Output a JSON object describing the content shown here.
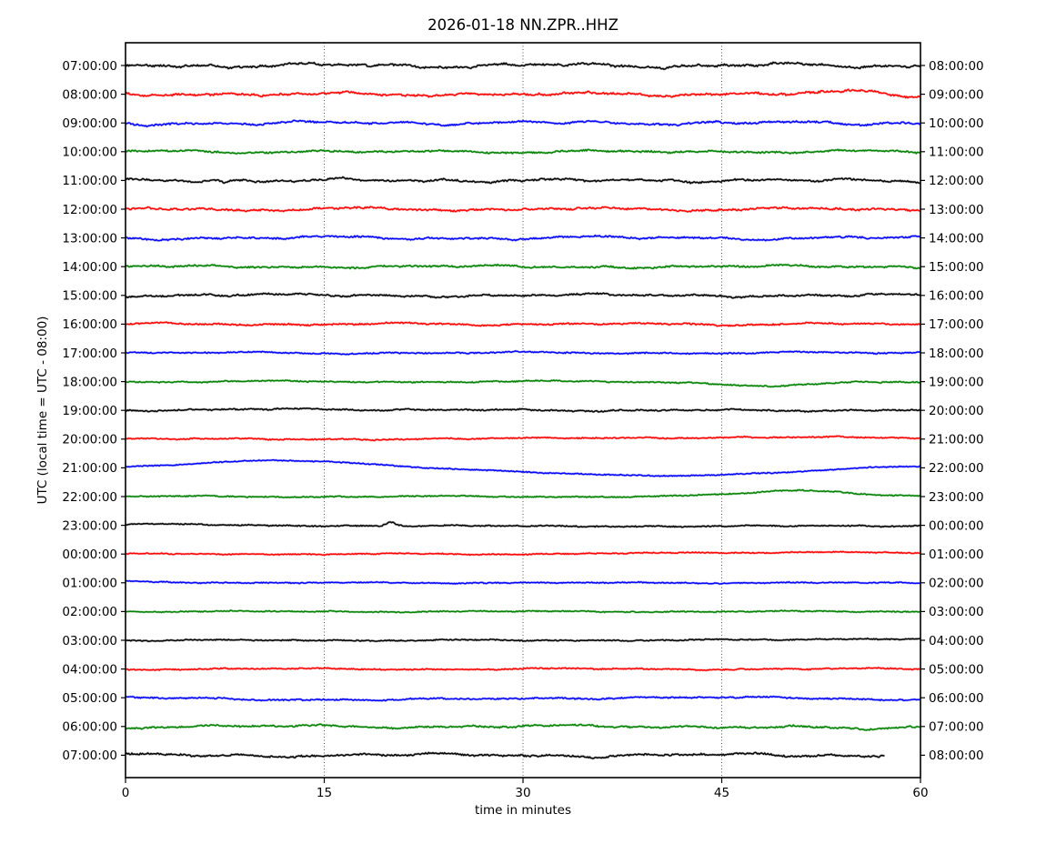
{
  "figure": {
    "title": "2026-01-18 NN.ZPR..HHZ",
    "xlabel": "time in minutes",
    "ylabel": "UTC (local time = UTC - 08:00)",
    "background": "#ffffff"
  },
  "chart_data": {
    "type": "line",
    "subtype": "seismic-helicorder-dayplot",
    "title": "2026-01-18 NN.ZPR..HHZ",
    "xlabel": "time in minutes",
    "ylabel": "UTC (local time = UTC - 08:00)",
    "x_range": [
      0,
      60
    ],
    "x_ticks": [
      0,
      15,
      30,
      45,
      60
    ],
    "grid_x_minutes": [
      15,
      30,
      45
    ],
    "grid_on": true,
    "minutes_per_row": 60,
    "colors_cycle": [
      "#000000",
      "#ff0000",
      "#0000ff",
      "#008000"
    ],
    "axis_color": "#000000",
    "rows": [
      {
        "left_label": "07:00:00",
        "right_label": "08:00:00",
        "color": "#000000",
        "noise_amp": 3.0,
        "seed": 1021,
        "end_min": 60,
        "features": []
      },
      {
        "left_label": "08:00:00",
        "right_label": "09:00:00",
        "color": "#ff0000",
        "noise_amp": 2.8,
        "seed": 2017,
        "end_min": 60,
        "features": [
          {
            "c": 55,
            "w": 3.5,
            "a": 3
          },
          {
            "c": 59.5,
            "w": 2,
            "a": -2
          }
        ]
      },
      {
        "left_label": "09:00:00",
        "right_label": "10:00:00",
        "color": "#0000ff",
        "noise_amp": 2.6,
        "seed": 3011,
        "end_min": 60,
        "features": [
          {
            "c": 1.5,
            "w": 2,
            "a": -2
          }
        ]
      },
      {
        "left_label": "10:00:00",
        "right_label": "11:00:00",
        "color": "#008000",
        "noise_amp": 2.3,
        "seed": 4007,
        "end_min": 60,
        "features": []
      },
      {
        "left_label": "11:00:00",
        "right_label": "12:00:00",
        "color": "#000000",
        "noise_amp": 2.6,
        "seed": 5003,
        "end_min": 60,
        "features": [
          {
            "c": 7.5,
            "w": 0.35,
            "a": -2.5
          }
        ]
      },
      {
        "left_label": "12:00:00",
        "right_label": "13:00:00",
        "color": "#ff0000",
        "noise_amp": 2.6,
        "seed": 6011,
        "end_min": 60,
        "features": []
      },
      {
        "left_label": "13:00:00",
        "right_label": "14:00:00",
        "color": "#0000ff",
        "noise_amp": 2.2,
        "seed": 7013,
        "end_min": 60,
        "features": []
      },
      {
        "left_label": "14:00:00",
        "right_label": "15:00:00",
        "color": "#008000",
        "noise_amp": 2.2,
        "seed": 8017,
        "end_min": 60,
        "features": []
      },
      {
        "left_label": "15:00:00",
        "right_label": "16:00:00",
        "color": "#000000",
        "noise_amp": 2.2,
        "seed": 9029,
        "end_min": 60,
        "features": []
      },
      {
        "left_label": "16:00:00",
        "right_label": "17:00:00",
        "color": "#ff0000",
        "noise_amp": 1.8,
        "seed": 10037,
        "end_min": 60,
        "features": []
      },
      {
        "left_label": "17:00:00",
        "right_label": "18:00:00",
        "color": "#0000ff",
        "noise_amp": 1.4,
        "seed": 11043,
        "end_min": 60,
        "features": []
      },
      {
        "left_label": "18:00:00",
        "right_label": "19:00:00",
        "color": "#008000",
        "noise_amp": 1.3,
        "seed": 12049,
        "end_min": 60,
        "features": [
          {
            "c": 49,
            "w": 5,
            "a": -5
          }
        ]
      },
      {
        "left_label": "19:00:00",
        "right_label": "20:00:00",
        "color": "#000000",
        "noise_amp": 1.5,
        "seed": 13057,
        "end_min": 60,
        "features": [
          {
            "c": 14,
            "w": 10,
            "a": 1.2
          }
        ]
      },
      {
        "left_label": "20:00:00",
        "right_label": "21:00:00",
        "color": "#ff0000",
        "noise_amp": 1.1,
        "seed": 14071,
        "end_min": 60,
        "features": [
          {
            "c": 47,
            "w": 16,
            "a": 2
          }
        ]
      },
      {
        "left_label": "21:00:00",
        "right_label": "22:00:00",
        "color": "#0000ff",
        "noise_amp": 0.9,
        "seed": 15073,
        "end_min": 60,
        "features": [
          {
            "c": 12,
            "w": 9,
            "a": 8
          },
          {
            "c": 40,
            "w": 13,
            "a": -8.5
          },
          {
            "c": 60,
            "w": 6,
            "a": 2.5
          }
        ]
      },
      {
        "left_label": "22:00:00",
        "right_label": "23:00:00",
        "color": "#008000",
        "noise_amp": 1.0,
        "seed": 16087,
        "end_min": 60,
        "features": [
          {
            "c": 51,
            "w": 5.5,
            "a": 7
          }
        ]
      },
      {
        "left_label": "23:00:00",
        "right_label": "00:00:00",
        "color": "#000000",
        "noise_amp": 1.1,
        "seed": 17093,
        "end_min": 60,
        "features": [
          {
            "c": 20,
            "w": 0.5,
            "a": 4
          },
          {
            "c": 1,
            "w": 6,
            "a": 1.5
          },
          {
            "c": 40,
            "w": 25,
            "a": -1
          }
        ]
      },
      {
        "left_label": "00:00:00",
        "right_label": "01:00:00",
        "color": "#ff0000",
        "noise_amp": 0.9,
        "seed": 18097,
        "end_min": 60,
        "features": [
          {
            "c": 50,
            "w": 12,
            "a": 2
          }
        ]
      },
      {
        "left_label": "01:00:00",
        "right_label": "02:00:00",
        "color": "#0000ff",
        "noise_amp": 0.9,
        "seed": 19101,
        "end_min": 60,
        "features": [
          {
            "c": 0,
            "w": 5,
            "a": 1.5
          }
        ]
      },
      {
        "left_label": "02:00:00",
        "right_label": "03:00:00",
        "color": "#008000",
        "noise_amp": 0.9,
        "seed": 20111,
        "end_min": 60,
        "features": []
      },
      {
        "left_label": "03:00:00",
        "right_label": "04:00:00",
        "color": "#000000",
        "noise_amp": 1.1,
        "seed": 21121,
        "end_min": 60,
        "features": [
          {
            "c": 55,
            "w": 8,
            "a": 1.5
          }
        ]
      },
      {
        "left_label": "04:00:00",
        "right_label": "05:00:00",
        "color": "#ff0000",
        "noise_amp": 1.2,
        "seed": 22133,
        "end_min": 60,
        "features": []
      },
      {
        "left_label": "05:00:00",
        "right_label": "06:00:00",
        "color": "#0000ff",
        "noise_amp": 1.5,
        "seed": 23141,
        "end_min": 60,
        "features": [
          {
            "c": 18,
            "w": 10,
            "a": -2.5
          },
          {
            "c": 58,
            "w": 4,
            "a": -2
          }
        ]
      },
      {
        "left_label": "06:00:00",
        "right_label": "07:00:00",
        "color": "#008000",
        "noise_amp": 2.0,
        "seed": 24151,
        "end_min": 60,
        "features": [
          {
            "c": 55,
            "w": 4,
            "a": -3
          }
        ]
      },
      {
        "left_label": "07:00:00",
        "right_label": "08:00:00",
        "color": "#000000",
        "noise_amp": 2.6,
        "seed": 25169,
        "end_min": 57.3,
        "features": []
      }
    ]
  }
}
